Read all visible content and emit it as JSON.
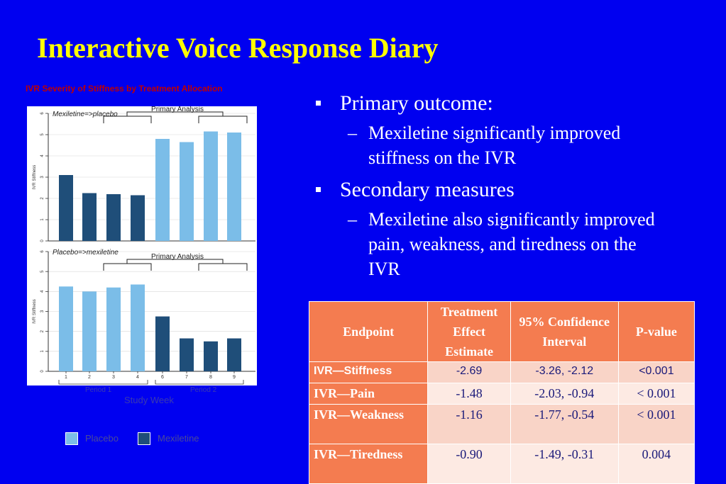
{
  "slide": {
    "title": "Interactive Voice Response Diary"
  },
  "bullets": [
    {
      "text": "Primary outcome:",
      "sub": "Mexiletine significantly improved stiffness on the IVR"
    },
    {
      "text": "Secondary measures",
      "sub": "Mexiletine also significantly improved pain, weakness, and tiredness on the IVR"
    }
  ],
  "table": {
    "headers": [
      "Endpoint",
      "Treatment Effect Estimate",
      "95% Confidence Interval",
      "P-value"
    ],
    "rows": [
      [
        "IVR—Stiffness",
        "-2.69",
        "-3.26, -2.12",
        "<0.001"
      ],
      [
        "IVR—Pain",
        "-1.48",
        "-2.03, -0.94",
        "< 0.001"
      ],
      [
        "IVR—Weakness",
        "-1.16",
        "-1.77, -0.54",
        "< 0.001"
      ],
      [
        "IVR—Tiredness",
        "-0.90",
        "-1.49, -0.31",
        "0.004"
      ]
    ]
  },
  "colors": {
    "placebo": "#7bbde8",
    "mexiletine": "#1f4e79"
  },
  "legend": [
    "Placebo",
    "Mexiletine"
  ],
  "chart_data": {
    "type": "bar",
    "title": "IVR Severity of Stiffness by Treatment Allocation",
    "xlabel": "Study Week",
    "ylabel": "IVR Stiffness",
    "ylim": [
      0,
      6
    ],
    "yticks": [
      "0",
      "1",
      "2",
      "3",
      "4",
      "5",
      "6"
    ],
    "categories": [
      "1",
      "2",
      "3",
      "4",
      "6",
      "7",
      "8",
      "9"
    ],
    "period_labels": [
      "Period 1",
      "Period 2"
    ],
    "bracket_label": "Primary Analysis",
    "panels": [
      {
        "name": "Mexiletine=>placebo",
        "values": [
          3.1,
          2.25,
          2.2,
          2.15,
          4.8,
          4.65,
          5.15,
          5.1
        ],
        "groups": [
          "Mexiletine",
          "Mexiletine",
          "Mexiletine",
          "Mexiletine",
          "Placebo",
          "Placebo",
          "Placebo",
          "Placebo"
        ]
      },
      {
        "name": "Placebo=>mexiletine",
        "values": [
          4.25,
          4.0,
          4.2,
          4.35,
          2.75,
          1.65,
          1.5,
          1.65
        ],
        "groups": [
          "Placebo",
          "Placebo",
          "Placebo",
          "Placebo",
          "Mexiletine",
          "Mexiletine",
          "Mexiletine",
          "Mexiletine"
        ]
      }
    ]
  }
}
